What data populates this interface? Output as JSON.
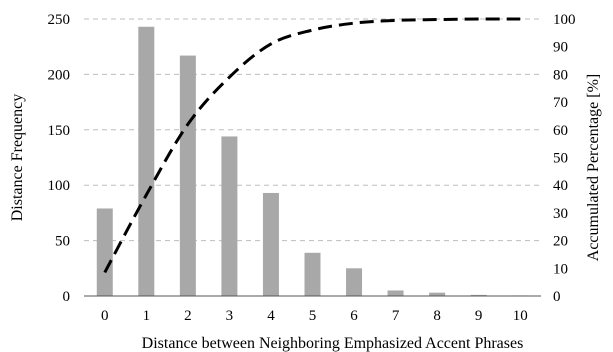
{
  "chart_data": {
    "type": "bar",
    "categories": [
      "0",
      "1",
      "2",
      "3",
      "4",
      "5",
      "6",
      "7",
      "8",
      "9",
      "10"
    ],
    "series": [
      {
        "values": [
          79,
          243,
          217,
          144,
          93,
          39,
          25,
          5,
          3,
          1,
          0.5
        ],
        "axis": "left",
        "kind": "bar"
      },
      {
        "values": [
          8.5,
          36.5,
          62,
          79,
          91,
          96,
          98.5,
          99.5,
          99.8,
          100,
          100
        ],
        "axis": "right",
        "kind": "line",
        "style": "dashed"
      }
    ],
    "xlabel": "Distance between Neighboring Emphasized Accent Phrases",
    "ylabel": "Distance Frequency",
    "y2label": "Accumulated Percentage [%]",
    "ylim": [
      0,
      250
    ],
    "y2lim": [
      0,
      100
    ],
    "yticks": [
      "0",
      "50",
      "100",
      "150",
      "200",
      "250"
    ],
    "y2ticks": [
      "0",
      "10",
      "20",
      "30",
      "40",
      "50",
      "60",
      "70",
      "80",
      "90",
      "100"
    ],
    "grid": true,
    "colors": {
      "bar": "#a8a8a8",
      "line": "#000000",
      "grid": "#bdbdbd"
    }
  }
}
